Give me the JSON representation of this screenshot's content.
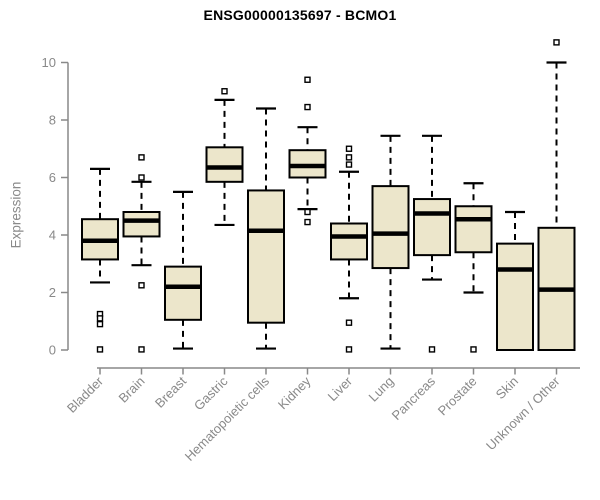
{
  "title": "ENSG00000135697 - BCMO1",
  "colors": {
    "background": "#ffffff",
    "box_fill": "#ece6cb",
    "box_stroke": "#000000",
    "median": "#000000",
    "whisker": "#000000",
    "outlier_fill": "#ffffff",
    "axis": "#898989",
    "tick_label": "#898989",
    "title_color": "#000000"
  },
  "chart_data": {
    "type": "boxplot",
    "title": "ENSG00000135697 - BCMO1",
    "xlabel": "",
    "ylabel": "Expression",
    "ylim": [
      0,
      11
    ],
    "yticks": [
      0,
      2,
      4,
      6,
      8,
      10
    ],
    "grid": false,
    "legend": false,
    "x_label_rotation_deg": 45,
    "categories": [
      "Bladder",
      "Brain",
      "Breast",
      "Gastric",
      "Hematopoietic cells",
      "Kidney",
      "Liver",
      "Lung",
      "Pancreas",
      "Prostate",
      "Skin",
      "Unknown / Other"
    ],
    "series": [
      {
        "name": "Bladder",
        "low": 2.35,
        "q1": 3.15,
        "median": 3.8,
        "q3": 4.55,
        "high": 6.3,
        "outliers": [
          1.25,
          1.1,
          0.9,
          0.02
        ]
      },
      {
        "name": "Brain",
        "low": 2.95,
        "q1": 3.95,
        "median": 4.5,
        "q3": 4.8,
        "high": 5.85,
        "outliers": [
          6.7,
          6.0,
          2.25,
          0.02
        ]
      },
      {
        "name": "Breast",
        "low": 0.05,
        "q1": 1.05,
        "median": 2.2,
        "q3": 2.9,
        "high": 5.5,
        "outliers": []
      },
      {
        "name": "Gastric",
        "low": 4.35,
        "q1": 5.85,
        "median": 6.35,
        "q3": 7.05,
        "high": 8.7,
        "outliers": [
          9.0
        ]
      },
      {
        "name": "Hematopoietic cells",
        "low": 0.05,
        "q1": 0.95,
        "median": 4.15,
        "q3": 5.55,
        "high": 8.4,
        "outliers": []
      },
      {
        "name": "Kidney",
        "low": 4.9,
        "q1": 6.0,
        "median": 6.4,
        "q3": 6.95,
        "high": 7.75,
        "outliers": [
          9.4,
          8.45,
          4.8,
          4.45
        ]
      },
      {
        "name": "Liver",
        "low": 1.8,
        "q1": 3.15,
        "median": 3.95,
        "q3": 4.4,
        "high": 6.2,
        "outliers": [
          7.0,
          6.7,
          6.45,
          0.95,
          0.02
        ]
      },
      {
        "name": "Lung",
        "low": 0.05,
        "q1": 2.85,
        "median": 4.05,
        "q3": 5.7,
        "high": 7.45,
        "outliers": []
      },
      {
        "name": "Pancreas",
        "low": 2.45,
        "q1": 3.3,
        "median": 4.75,
        "q3": 5.25,
        "high": 7.45,
        "outliers": [
          0.02
        ]
      },
      {
        "name": "Prostate",
        "low": 2.0,
        "q1": 3.4,
        "median": 4.55,
        "q3": 5.0,
        "high": 5.8,
        "outliers": [
          0.02
        ]
      },
      {
        "name": "Skin",
        "low": 0,
        "q1": 0,
        "median": 2.8,
        "q3": 3.7,
        "high": 4.8,
        "outliers": []
      },
      {
        "name": "Unknown / Other",
        "low": 0,
        "q1": 0,
        "median": 2.1,
        "q3": 4.25,
        "high": 10.0,
        "outliers": [
          10.7
        ]
      }
    ]
  }
}
